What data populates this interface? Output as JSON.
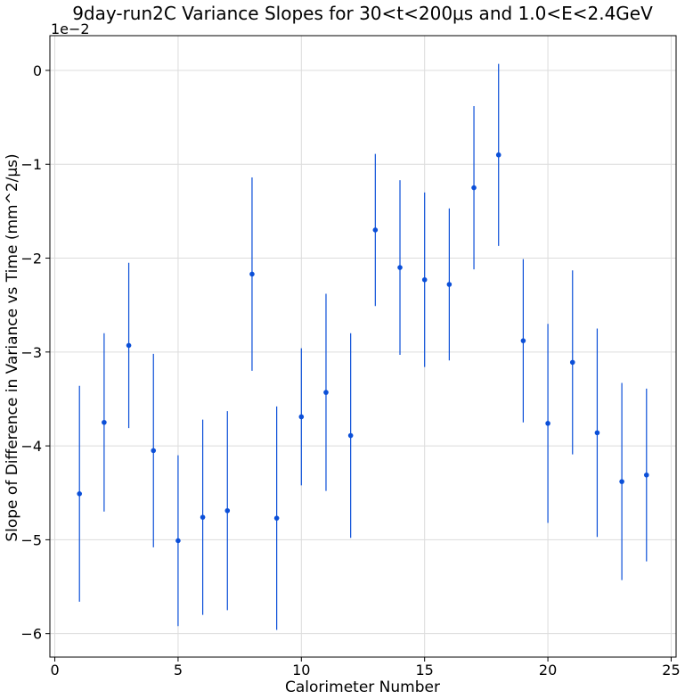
{
  "chart_data": {
    "type": "scatter",
    "title": "9day-run2C Variance Slopes for 30<t<200μs and 1.0<E<2.4GeV",
    "xlabel": "Calorimeter Number",
    "ylabel": "Slope of Difference in Variance vs Time (mm^2/μs)",
    "y_offset_label": "1e−2",
    "xlim": [
      -0.2,
      25.2
    ],
    "ylim": [
      -6.25,
      0.37
    ],
    "x_ticks": [
      0,
      5,
      10,
      15,
      20,
      25
    ],
    "x_tick_labels": [
      "0",
      "5",
      "10",
      "15",
      "20",
      "25"
    ],
    "y_ticks": [
      0,
      -1,
      -2,
      -3,
      -4,
      -5,
      -6
    ],
    "y_tick_labels": [
      "0",
      "−1",
      "−2",
      "−3",
      "−4",
      "−5",
      "−6"
    ],
    "grid": true,
    "color": "#0b4fd8",
    "series": [
      {
        "x": [
          1,
          2,
          3,
          4,
          5,
          6,
          7,
          8,
          9,
          10,
          11,
          12,
          13,
          14,
          15,
          16,
          17,
          18,
          19,
          20,
          21,
          22,
          23,
          24
        ],
        "y": [
          -4.51,
          -3.75,
          -2.93,
          -4.05,
          -5.01,
          -4.76,
          -4.69,
          -2.17,
          -4.77,
          -3.69,
          -3.43,
          -3.89,
          -1.7,
          -2.1,
          -2.23,
          -2.28,
          -1.25,
          -0.9,
          -2.88,
          -3.76,
          -3.11,
          -3.86,
          -4.38,
          -4.31
        ],
        "yerr": [
          1.15,
          0.95,
          0.88,
          1.03,
          0.91,
          1.04,
          1.06,
          1.03,
          1.19,
          0.73,
          1.05,
          1.09,
          0.81,
          0.93,
          0.93,
          0.81,
          0.87,
          0.97,
          0.87,
          1.06,
          0.98,
          1.11,
          1.05,
          0.92
        ]
      }
    ]
  }
}
